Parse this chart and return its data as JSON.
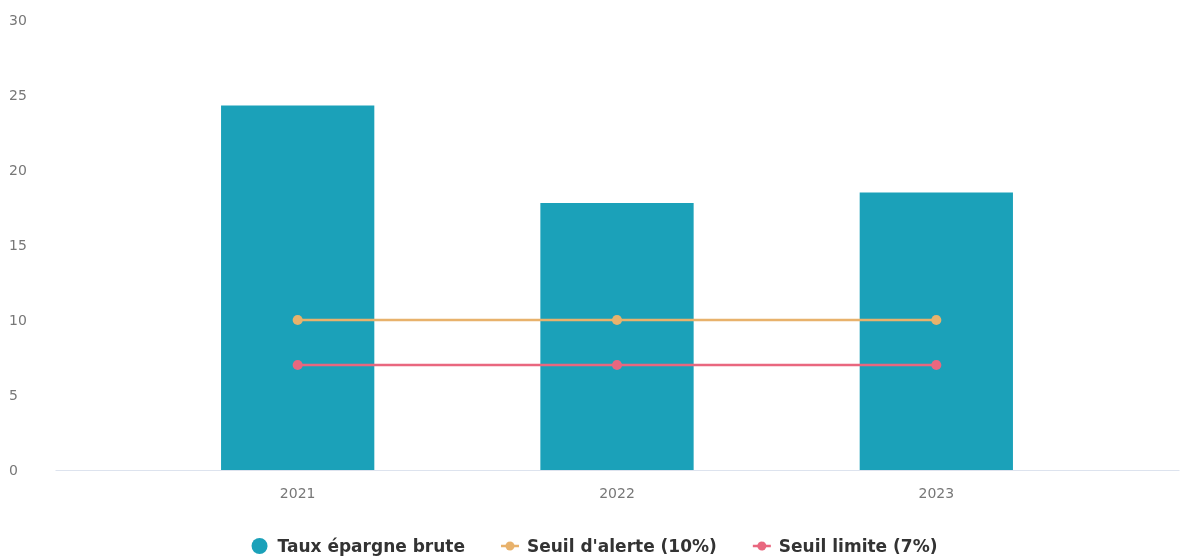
{
  "chart_data": {
    "type": "bar",
    "categories": [
      "2021",
      "2022",
      "2023"
    ],
    "series": [
      {
        "name": "Taux épargne brute",
        "color": "#1ba1b9",
        "values": [
          24.3,
          17.8,
          18.5
        ]
      },
      {
        "name": "Seuil d'alerte (10%)",
        "type": "line",
        "color": "#e8b26c",
        "values": [
          10,
          10,
          10
        ]
      },
      {
        "name": "Seuil limite (7%)",
        "type": "line",
        "color": "#e9677f",
        "values": [
          7,
          7,
          7
        ]
      }
    ],
    "ylim": [
      0,
      30
    ],
    "yticks": [
      0,
      5,
      10,
      15,
      20,
      25,
      30
    ],
    "grid": false,
    "legend": "bottom",
    "marker": "circle",
    "line_style": "solid"
  }
}
